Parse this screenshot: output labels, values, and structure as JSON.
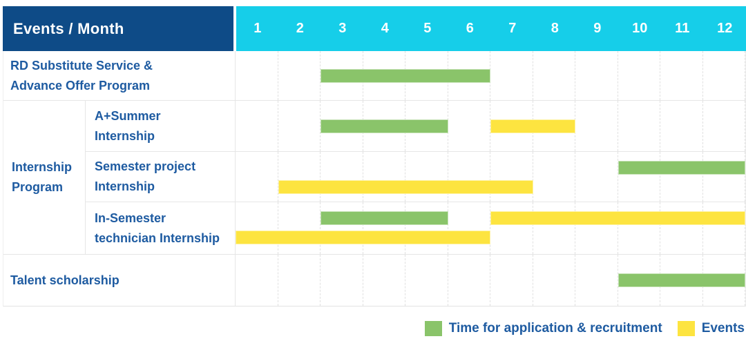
{
  "header": {
    "corner_label": "Events / Month"
  },
  "colors": {
    "header_bg": "#0e4b87",
    "months_header_bg": "#16cee9",
    "application_green": "#8ac46a",
    "event_yellow": "#fde440",
    "label_text_blue": "#1e5ba1"
  },
  "chart_data": {
    "type": "bar",
    "subtype": "gantt-month-timeline",
    "corner_header": "Events / Month",
    "x_categories": [
      "1",
      "2",
      "3",
      "4",
      "5",
      "6",
      "7",
      "8",
      "9",
      "10",
      "11",
      "12"
    ],
    "x_range": [
      1,
      12
    ],
    "grid": "vertical-dashed",
    "legend_position": "bottom-right",
    "group_label": "Internship Program",
    "group_label_lines": [
      "Internship",
      "Program"
    ],
    "rows": [
      {
        "group": null,
        "label": "RD Substitute Service & Advance Offer Program",
        "label_lines": [
          "RD Substitute Service &",
          "Advance Offer Program"
        ],
        "bars": [
          {
            "series": "application",
            "start_month": 3,
            "end_month": 6,
            "line": 0
          }
        ]
      },
      {
        "group": "Internship Program",
        "label": "A+Summer Internship",
        "label_lines": [
          "A+Summer",
          "Internship"
        ],
        "bars": [
          {
            "series": "application",
            "start_month": 3,
            "end_month": 5,
            "line": 0
          },
          {
            "series": "event",
            "start_month": 7,
            "end_month": 8,
            "line": 0
          }
        ]
      },
      {
        "group": "Internship Program",
        "label": "Semester project Internship",
        "label_lines": [
          "Semester project",
          "Internship"
        ],
        "bars": [
          {
            "series": "application",
            "start_month": 10,
            "end_month": 12,
            "line": 0
          },
          {
            "series": "event",
            "start_month": 2,
            "end_month": 7,
            "line": 1
          }
        ]
      },
      {
        "group": "Internship Program",
        "label": "In-Semester technician Internship",
        "label_lines": [
          "In-Semester",
          "technician Internship"
        ],
        "bars": [
          {
            "series": "application",
            "start_month": 3,
            "end_month": 5,
            "line": 0
          },
          {
            "series": "event",
            "start_month": 7,
            "end_month": 12,
            "line": 0
          },
          {
            "series": "event",
            "start_month": 1,
            "end_month": 6,
            "line": 1
          }
        ]
      },
      {
        "group": null,
        "label": "Talent scholarship",
        "label_lines": [
          "Talent scholarship"
        ],
        "bars": [
          {
            "series": "application",
            "start_month": 10,
            "end_month": 12,
            "line": 0
          }
        ]
      }
    ],
    "legend": [
      {
        "series": "application",
        "label": "Time for application & recruitment"
      },
      {
        "series": "event",
        "label": "Events"
      }
    ]
  }
}
